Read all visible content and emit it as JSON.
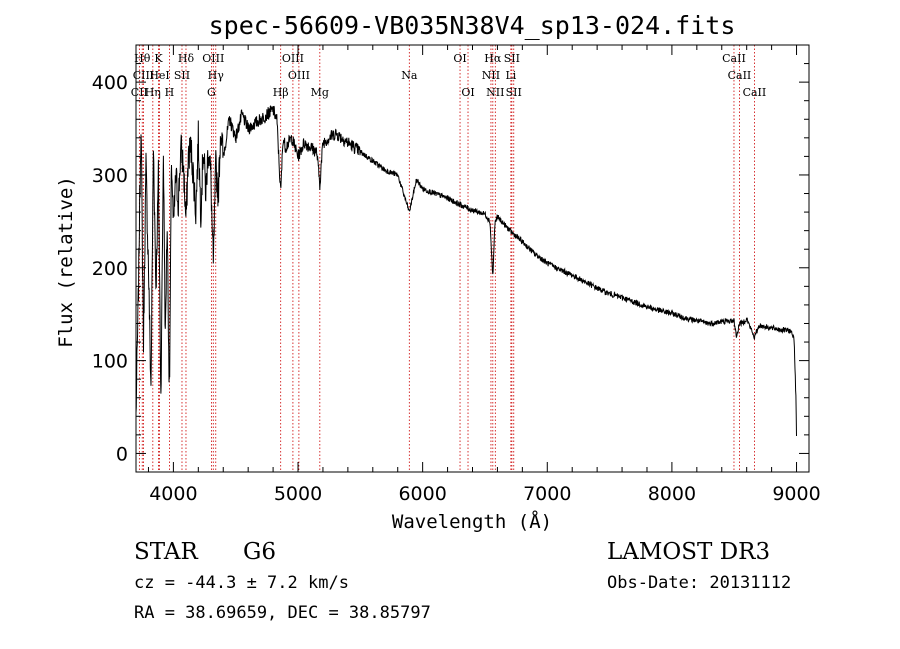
{
  "chart_data": {
    "type": "line",
    "title": "spec-56609-VB035N38V4_sp13-024.fits",
    "xlabel": "Wavelength (Å)",
    "ylabel": "Flux (relative)",
    "xlim": [
      3700,
      9100
    ],
    "ylim": [
      -20,
      440
    ],
    "xticks": [
      4000,
      5000,
      6000,
      7000,
      8000,
      9000
    ],
    "yticks": [
      0,
      100,
      200,
      300,
      400
    ],
    "grid": false,
    "series": [
      {
        "name": "spectrum",
        "x": [
          3700,
          3720,
          3740,
          3760,
          3780,
          3800,
          3820,
          3840,
          3860,
          3880,
          3900,
          3920,
          3935,
          3950,
          3968,
          3985,
          4000,
          4020,
          4040,
          4060,
          4080,
          4101,
          4120,
          4140,
          4160,
          4180,
          4200,
          4220,
          4240,
          4260,
          4280,
          4300,
          4320,
          4340,
          4360,
          4380,
          4400,
          4450,
          4500,
          4550,
          4600,
          4650,
          4700,
          4750,
          4800,
          4830,
          4861,
          4880,
          4900,
          4950,
          5000,
          5050,
          5100,
          5150,
          5175,
          5200,
          5250,
          5300,
          5350,
          5400,
          5450,
          5500,
          5600,
          5700,
          5800,
          5893,
          5950,
          6000,
          6100,
          6200,
          6300,
          6400,
          6500,
          6540,
          6563,
          6580,
          6600,
          6700,
          6800,
          6900,
          7000,
          7100,
          7200,
          7300,
          7400,
          7500,
          7600,
          7700,
          7800,
          7900,
          8000,
          8100,
          8200,
          8300,
          8400,
          8498,
          8520,
          8542,
          8560,
          8600,
          8662,
          8700,
          8800,
          8900,
          8950,
          8980,
          8995,
          9000
        ],
        "values": [
          40,
          180,
          360,
          120,
          310,
          200,
          70,
          330,
          180,
          300,
          60,
          330,
          120,
          250,
          60,
          320,
          240,
          300,
          270,
          330,
          310,
          250,
          320,
          330,
          300,
          260,
          340,
          260,
          330,
          280,
          330,
          300,
          200,
          310,
          280,
          350,
          320,
          360,
          340,
          365,
          350,
          355,
          360,
          365,
          370,
          360,
          280,
          340,
          330,
          340,
          320,
          335,
          330,
          325,
          290,
          335,
          340,
          345,
          340,
          335,
          330,
          325,
          315,
          305,
          300,
          260,
          295,
          285,
          280,
          275,
          268,
          262,
          258,
          250,
          190,
          248,
          255,
          240,
          228,
          215,
          205,
          198,
          192,
          185,
          178,
          172,
          168,
          163,
          158,
          154,
          151,
          146,
          143,
          140,
          142,
          143,
          125,
          141,
          140,
          145,
          125,
          138,
          135,
          133,
          132,
          125,
          60,
          20
        ]
      }
    ],
    "lines": [
      {
        "name": "CII",
        "x": 3727,
        "row": 2
      },
      {
        "name": "Hθ",
        "x": 3750,
        "row": 0
      },
      {
        "name": "CIII",
        "x": 3760,
        "row": 1
      },
      {
        "name": "Hη",
        "x": 3835,
        "row": 2
      },
      {
        "name": "K",
        "x": 3880,
        "row": 0
      },
      {
        "name": "HeI",
        "x": 3889,
        "row": 1
      },
      {
        "name": "H",
        "x": 3968,
        "row": 2
      },
      {
        "name": "SII",
        "x": 4069,
        "row": 1
      },
      {
        "name": "Hδ",
        "x": 4101,
        "row": 0
      },
      {
        "name": "OIII",
        "x": 4320,
        "row": 0
      },
      {
        "name": "Hγ",
        "x": 4340,
        "row": 1
      },
      {
        "name": "G",
        "x": 4305,
        "row": 2
      },
      {
        "name": "Hβ",
        "x": 4861,
        "row": 2
      },
      {
        "name": "OIII",
        "x": 4959,
        "row": 0
      },
      {
        "name": "OIII",
        "x": 5007,
        "row": 1
      },
      {
        "name": "Mg",
        "x": 5175,
        "row": 2
      },
      {
        "name": "Na",
        "x": 5893,
        "row": 1
      },
      {
        "name": "OI",
        "x": 6300,
        "row": 0
      },
      {
        "name": "OI",
        "x": 6364,
        "row": 2
      },
      {
        "name": "Hα",
        "x": 6563,
        "row": 0
      },
      {
        "name": "NII",
        "x": 6548,
        "row": 1
      },
      {
        "name": "NII",
        "x": 6583,
        "row": 2
      },
      {
        "name": "SII",
        "x": 6716,
        "row": 0
      },
      {
        "name": "Li",
        "x": 6708,
        "row": 1
      },
      {
        "name": "SII",
        "x": 6731,
        "row": 2
      },
      {
        "name": "CaII",
        "x": 8498,
        "row": 0
      },
      {
        "name": "CaII",
        "x": 8542,
        "row": 1
      },
      {
        "name": "CaII",
        "x": 8662,
        "row": 2
      }
    ]
  },
  "info": {
    "class": "STAR",
    "subclass": "G6",
    "survey": "LAMOST DR3",
    "cz": "cz = -44.3 ± 7.2 km/s",
    "obs_date": "Obs-Date: 20131112",
    "coords": "RA =  38.69659, DEC =  38.85797"
  },
  "colors": {
    "line_marker": "#cc0000",
    "spectrum": "#000000",
    "axis": "#000000"
  }
}
